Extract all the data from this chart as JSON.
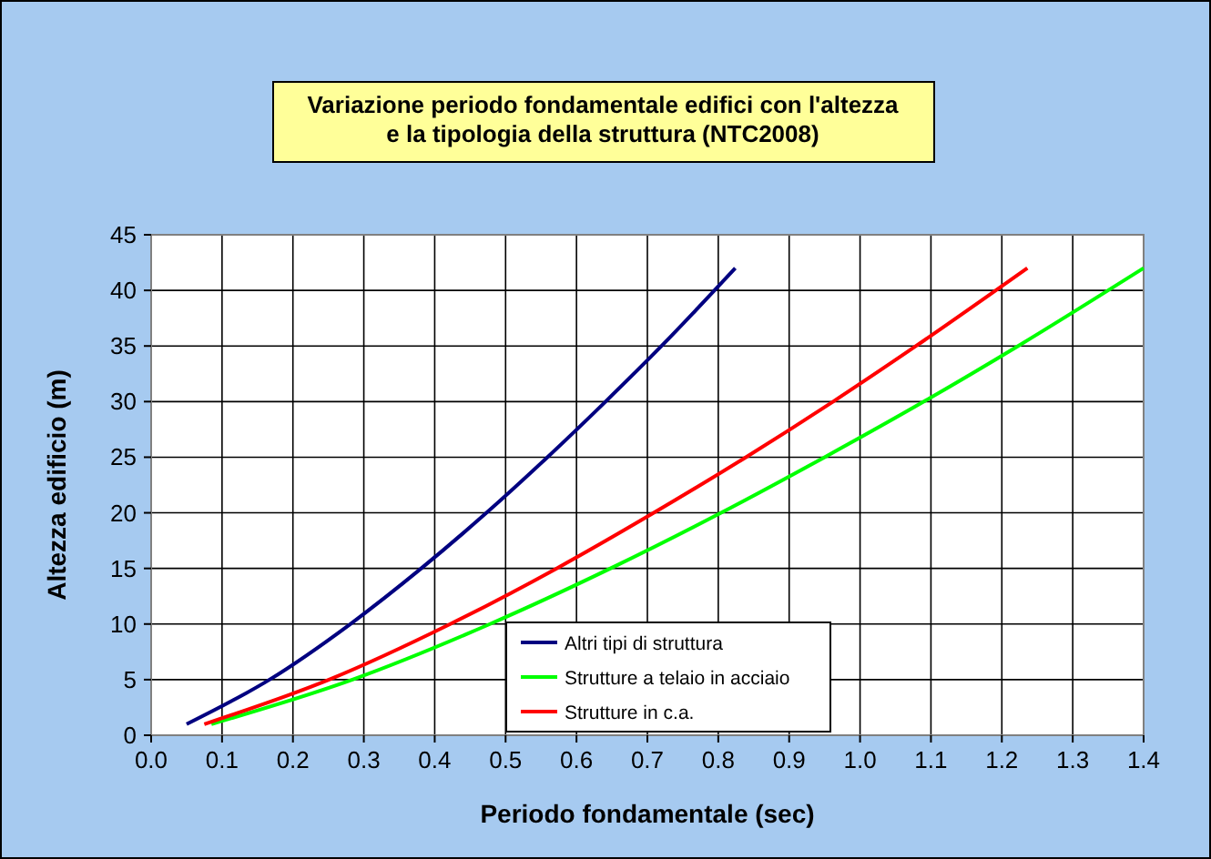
{
  "chart_data": {
    "type": "line",
    "title": "Variazione periodo fondamentale edifici con l'altezza\ne la tipologia della struttura (NTC2008)",
    "xlabel": "Periodo fondamentale (sec)",
    "ylabel": "Altezza edificio (m)",
    "xlim": [
      0,
      1.4
    ],
    "ylim": [
      0,
      45
    ],
    "xticks": [
      {
        "value": 0,
        "label": "0.0"
      },
      0.1,
      0.2,
      0.3,
      0.4,
      0.5,
      0.6,
      0.7,
      0.8,
      0.9,
      {
        "value": 1,
        "label": "1.0"
      },
      1.1,
      1.2,
      1.3,
      1.4
    ],
    "yticks": [
      0,
      5,
      10,
      15,
      20,
      25,
      30,
      35,
      40,
      45
    ],
    "grid": true,
    "legend": "bottom",
    "line_style": "solid",
    "series": [
      {
        "name": "Altri tipi di struttura",
        "color": "#000080",
        "x": [
          0.05,
          0.167,
          0.281,
          0.381,
          0.473,
          0.559,
          0.641,
          0.72,
          0.824
        ],
        "values": [
          1,
          5,
          10,
          15,
          20,
          25,
          30,
          35,
          42
        ]
      },
      {
        "name": "Strutture a telaio in acciaio",
        "color": "#00ff00",
        "x": [
          0.085,
          0.284,
          0.478,
          0.648,
          0.804,
          0.95,
          1.09,
          1.223,
          1.4
        ],
        "values": [
          1,
          5,
          10,
          15,
          20,
          25,
          30,
          35,
          42
        ]
      },
      {
        "name": "Strutture in c.a.",
        "color": "#ff0000",
        "x": [
          0.075,
          0.251,
          0.422,
          0.572,
          0.709,
          0.839,
          0.962,
          1.079,
          1.236
        ],
        "values": [
          1,
          5,
          10,
          15,
          20,
          25,
          30,
          35,
          42
        ]
      }
    ]
  }
}
